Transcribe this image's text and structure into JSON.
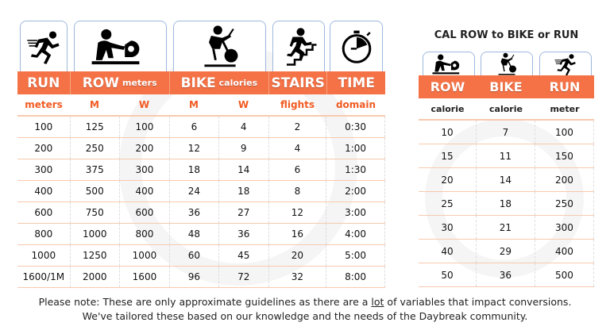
{
  "left": {
    "icons": [
      "running-icon",
      "rowing-icon",
      "bike-icon",
      "stairs-icon",
      "stopwatch-icon"
    ],
    "headers": [
      {
        "label": "RUN",
        "unit": ""
      },
      {
        "label": "ROW",
        "unit": "meters"
      },
      {
        "label": "BIKE",
        "unit": "calories"
      },
      {
        "label": "STAIRS",
        "unit": ""
      },
      {
        "label": "TIME",
        "unit": ""
      }
    ],
    "subheaders": [
      "meters",
      "M",
      "W",
      "M",
      "W",
      "flights",
      "domain"
    ],
    "rows": [
      [
        "100",
        "125",
        "100",
        "6",
        "4",
        "2",
        "0:30"
      ],
      [
        "200",
        "250",
        "200",
        "12",
        "9",
        "4",
        "1:00"
      ],
      [
        "300",
        "375",
        "300",
        "18",
        "14",
        "6",
        "1:30"
      ],
      [
        "400",
        "500",
        "400",
        "24",
        "18",
        "8",
        "2:00"
      ],
      [
        "600",
        "750",
        "600",
        "36",
        "27",
        "12",
        "3:00"
      ],
      [
        "800",
        "1000",
        "800",
        "48",
        "36",
        "16",
        "4:00"
      ],
      [
        "1000",
        "1250",
        "1000",
        "60",
        "45",
        "20",
        "5:00"
      ],
      [
        "1600/1M",
        "2000",
        "1600",
        "96",
        "72",
        "32",
        "8:00"
      ]
    ]
  },
  "right": {
    "title": "CAL ROW to BIKE or RUN",
    "icons": [
      "rowing-icon",
      "bike-icon",
      "running-icon"
    ],
    "headers": [
      "ROW",
      "BIKE",
      "RUN"
    ],
    "subheaders": [
      "calorie",
      "calorie",
      "meter"
    ],
    "rows": [
      [
        "10",
        "7",
        "100"
      ],
      [
        "15",
        "11",
        "150"
      ],
      [
        "20",
        "14",
        "200"
      ],
      [
        "25",
        "18",
        "250"
      ],
      [
        "30",
        "21",
        "300"
      ],
      [
        "40",
        "29",
        "400"
      ],
      [
        "50",
        "36",
        "500"
      ]
    ]
  },
  "footer": {
    "line1_a": "Please note: These are only approximate guidelines as there are a ",
    "line1_u": "lot",
    "line1_b": " of variables that impact conversions.",
    "line2": "We've tailored these based on our knowledge and the needs of the Daybreak community."
  },
  "colors": {
    "accent": "#f47246",
    "subtext": "#f15a22",
    "row_line": "#f8c9ae",
    "icon_border": "#9db8dc"
  }
}
